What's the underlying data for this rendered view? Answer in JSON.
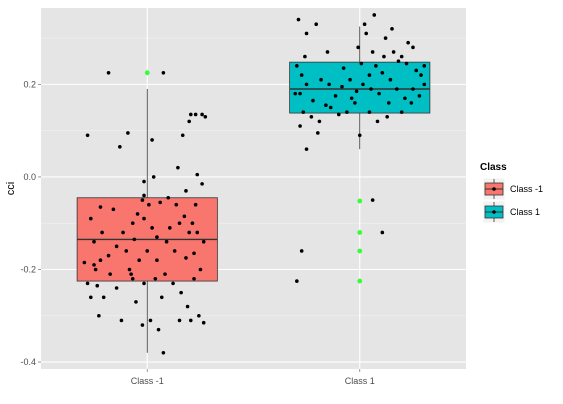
{
  "chart_data": {
    "type": "boxplot",
    "title": "",
    "xlabel": "",
    "ylabel": "cci",
    "categories": [
      "Class -1",
      "Class 1"
    ],
    "ylim": [
      -0.415,
      0.365
    ],
    "yticks": [
      -0.4,
      -0.2,
      0.0,
      0.2
    ],
    "ytick_labels": [
      "-0.4",
      "-0.2",
      "0.0",
      "0.2"
    ],
    "grid": true,
    "legend": {
      "title": "Class",
      "position": "right",
      "entries": [
        {
          "label": "Class -1",
          "color": "#F8766D"
        },
        {
          "label": "Class 1",
          "color": "#00BFC4"
        }
      ]
    },
    "colors": {
      "panel": "#E5E5E5",
      "grid_major": "#FFFFFF",
      "grid_minor": "#F2F2F2",
      "points": "#000000",
      "outliers": "#33FF33"
    },
    "boxes": [
      {
        "category": "Class -1",
        "q1": -0.225,
        "median": -0.135,
        "q3": -0.045,
        "whisker_low": -0.38,
        "whisker_high": 0.19,
        "outliers": [
          0.225
        ],
        "points": [
          [
            -0.24,
            0.225
          ],
          [
            -0.32,
            -0.2
          ],
          [
            -0.1,
            -0.21
          ],
          [
            0.1,
            0.225
          ],
          [
            -0.37,
            0.09
          ],
          [
            -0.29,
            -0.065
          ],
          [
            -0.03,
            -0.05
          ],
          [
            0.01,
            -0.06
          ],
          [
            0.26,
            0.12
          ],
          [
            0.3,
            0.135
          ],
          [
            0.34,
            0.135
          ],
          [
            0.27,
            0.135
          ],
          [
            0.22,
            0.09
          ],
          [
            0.36,
            0.13
          ],
          [
            0.19,
            0.02
          ],
          [
            0.34,
            -0.015
          ],
          [
            0.31,
            0.005
          ],
          [
            -0.17,
            0.065
          ],
          [
            0.03,
            0.08
          ],
          [
            -0.12,
            0.095
          ],
          [
            -0.02,
            -0.01
          ],
          [
            0.08,
            -0.055
          ],
          [
            0.13,
            -0.045
          ],
          [
            0.18,
            -0.06
          ],
          [
            0.23,
            -0.085
          ],
          [
            0.28,
            -0.1
          ],
          [
            0.31,
            -0.12
          ],
          [
            0.35,
            -0.14
          ],
          [
            0.29,
            -0.165
          ],
          [
            0.24,
            -0.175
          ],
          [
            0.17,
            -0.16
          ],
          [
            0.12,
            -0.14
          ],
          [
            0.06,
            -0.13
          ],
          [
            0.03,
            -0.11
          ],
          [
            -0.02,
            -0.09
          ],
          [
            -0.06,
            -0.08
          ],
          [
            -0.09,
            -0.1
          ],
          [
            -0.15,
            -0.12
          ],
          [
            -0.19,
            -0.15
          ],
          [
            -0.24,
            -0.17
          ],
          [
            -0.29,
            -0.18
          ],
          [
            -0.33,
            -0.19
          ],
          [
            -0.37,
            -0.23
          ],
          [
            -0.39,
            -0.185
          ],
          [
            -0.31,
            -0.235
          ],
          [
            -0.27,
            -0.26
          ],
          [
            -0.35,
            -0.26
          ],
          [
            -0.3,
            -0.3
          ],
          [
            -0.16,
            -0.31
          ],
          [
            -0.07,
            -0.27
          ],
          [
            -0.02,
            -0.23
          ],
          [
            0.05,
            -0.22
          ],
          [
            0.11,
            -0.21
          ],
          [
            0.16,
            -0.23
          ],
          [
            0.21,
            -0.25
          ],
          [
            0.25,
            -0.28
          ],
          [
            0.27,
            -0.31
          ],
          [
            0.32,
            -0.3
          ],
          [
            0.35,
            -0.315
          ],
          [
            0.2,
            -0.31
          ],
          [
            0.07,
            -0.33
          ],
          [
            0.02,
            -0.31
          ],
          [
            -0.03,
            -0.32
          ],
          [
            0.1,
            -0.38
          ],
          [
            -0.11,
            -0.2
          ],
          [
            -0.05,
            -0.18
          ],
          [
            -0.13,
            -0.16
          ],
          [
            0.06,
            -0.18
          ],
          [
            0.0,
            -0.16
          ],
          [
            -0.08,
            -0.135
          ],
          [
            0.14,
            -0.11
          ],
          [
            0.2,
            -0.1
          ],
          [
            0.26,
            -0.12
          ],
          [
            -0.21,
            -0.07
          ],
          [
            -0.35,
            -0.09
          ],
          [
            -0.28,
            -0.12
          ],
          [
            -0.33,
            -0.14
          ],
          [
            -0.23,
            -0.21
          ],
          [
            -0.19,
            -0.24
          ],
          [
            0.29,
            -0.22
          ],
          [
            0.33,
            -0.2
          ],
          [
            0.24,
            -0.03
          ],
          [
            0.3,
            -0.06
          ],
          [
            0.09,
            -0.26
          ],
          [
            -0.09,
            -0.22
          ],
          [
            0.04,
            0.0
          ],
          [
            -0.02,
            -0.04
          ]
        ]
      },
      {
        "category": "Class 1",
        "q1": 0.138,
        "median": 0.19,
        "q3": 0.248,
        "whisker_low": 0.06,
        "whisker_high": 0.325,
        "outliers": [
          -0.052,
          -0.12,
          -0.16,
          -0.225
        ],
        "points": [
          [
            -0.38,
            0.34
          ],
          [
            -0.33,
            0.31
          ],
          [
            -0.27,
            0.33
          ],
          [
            0.03,
            0.33
          ],
          [
            0.04,
            0.31
          ],
          [
            0.09,
            0.35
          ],
          [
            0.16,
            0.3
          ],
          [
            0.2,
            0.32
          ],
          [
            0.3,
            0.29
          ],
          [
            0.33,
            0.28
          ],
          [
            0.26,
            0.26
          ],
          [
            -0.34,
            0.26
          ],
          [
            -0.39,
            0.24
          ],
          [
            -0.36,
            0.22
          ],
          [
            -0.33,
            0.2
          ],
          [
            -0.37,
            0.18
          ],
          [
            -0.35,
            0.14
          ],
          [
            -0.3,
            0.13
          ],
          [
            -0.25,
            0.12
          ],
          [
            -0.4,
            0.18
          ],
          [
            -0.37,
            0.11
          ],
          [
            -0.21,
            0.155
          ],
          [
            -0.15,
            0.175
          ],
          [
            -0.11,
            0.195
          ],
          [
            -0.06,
            0.21
          ],
          [
            -0.02,
            0.185
          ],
          [
            0.02,
            0.2
          ],
          [
            0.06,
            0.22
          ],
          [
            0.1,
            0.24
          ],
          [
            0.14,
            0.225
          ],
          [
            0.19,
            0.21
          ],
          [
            0.23,
            0.19
          ],
          [
            0.28,
            0.17
          ],
          [
            0.32,
            0.16
          ],
          [
            0.37,
            0.175
          ],
          [
            0.4,
            0.2
          ],
          [
            0.38,
            0.22
          ],
          [
            0.35,
            0.23
          ],
          [
            0.29,
            0.245
          ],
          [
            0.24,
            0.25
          ],
          [
            0.21,
            0.27
          ],
          [
            0.15,
            0.26
          ],
          [
            0.08,
            0.27
          ],
          [
            -0.03,
            0.16
          ],
          [
            -0.08,
            0.14
          ],
          [
            -0.13,
            0.135
          ],
          [
            -0.18,
            0.15
          ],
          [
            0.06,
            0.14
          ],
          [
            0.11,
            0.12
          ],
          [
            0.17,
            0.13
          ],
          [
            0.12,
            0.18
          ],
          [
            0.07,
            0.19
          ],
          [
            -0.05,
            0.17
          ],
          [
            -0.19,
            0.2
          ],
          [
            -0.24,
            0.21
          ],
          [
            -0.29,
            0.165
          ],
          [
            -0.1,
            0.235
          ],
          [
            0.01,
            0.245
          ],
          [
            -0.2,
            0.27
          ],
          [
            -0.01,
            0.28
          ],
          [
            0.0,
            0.09
          ],
          [
            -0.26,
            0.095
          ],
          [
            -0.33,
            0.06
          ],
          [
            0.18,
            0.16
          ],
          [
            0.26,
            0.14
          ],
          [
            0.33,
            0.19
          ],
          [
            0.4,
            0.24
          ],
          [
            -0.36,
            -0.16
          ],
          [
            -0.39,
            -0.225
          ],
          [
            0.08,
            -0.05
          ],
          [
            0.14,
            -0.12
          ]
        ]
      }
    ]
  }
}
